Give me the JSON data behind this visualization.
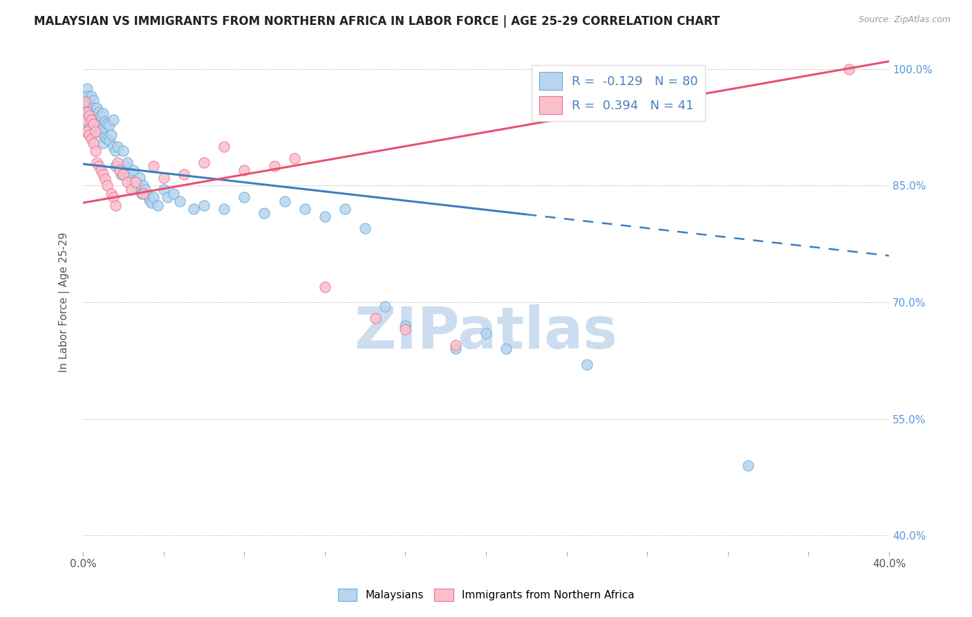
{
  "title": "MALAYSIAN VS IMMIGRANTS FROM NORTHERN AFRICA IN LABOR FORCE | AGE 25-29 CORRELATION CHART",
  "source_text": "Source: ZipAtlas.com",
  "ylabel": "In Labor Force | Age 25-29",
  "r_malaysian": -0.129,
  "n_malaysian": 80,
  "r_northern_africa": 0.394,
  "n_northern_africa": 41,
  "color_malaysian_fill": "#b8d4ee",
  "color_malaysian_edge": "#6aaed6",
  "color_northern_africa_fill": "#f9c0cc",
  "color_northern_africa_edge": "#f07090",
  "color_trendline_malaysian": "#3a7fc1",
  "color_trendline_northern_africa": "#e85070",
  "watermark_color": "#ccddf0",
  "xlim": [
    0.0,
    0.4
  ],
  "ylim": [
    0.38,
    1.02
  ],
  "trendline_solid_end_mal": 0.22,
  "mal_points_x": [
    0.001,
    0.001,
    0.001,
    0.002,
    0.002,
    0.002,
    0.003,
    0.003,
    0.003,
    0.004,
    0.004,
    0.004,
    0.005,
    0.005,
    0.005,
    0.006,
    0.006,
    0.006,
    0.007,
    0.007,
    0.008,
    0.008,
    0.009,
    0.009,
    0.01,
    0.01,
    0.01,
    0.011,
    0.011,
    0.012,
    0.012,
    0.013,
    0.013,
    0.014,
    0.015,
    0.015,
    0.016,
    0.016,
    0.017,
    0.018,
    0.019,
    0.02,
    0.02,
    0.021,
    0.022,
    0.023,
    0.024,
    0.025,
    0.026,
    0.027,
    0.028,
    0.029,
    0.03,
    0.031,
    0.032,
    0.033,
    0.034,
    0.035,
    0.037,
    0.04,
    0.042,
    0.045,
    0.048,
    0.055,
    0.06,
    0.07,
    0.08,
    0.09,
    0.1,
    0.11,
    0.12,
    0.13,
    0.14,
    0.15,
    0.16,
    0.185,
    0.2,
    0.21,
    0.25,
    0.33
  ],
  "mal_points_y": [
    0.96,
    0.94,
    0.92,
    0.975,
    0.965,
    0.95,
    0.96,
    0.945,
    0.93,
    0.965,
    0.95,
    0.935,
    0.96,
    0.95,
    0.93,
    0.948,
    0.935,
    0.925,
    0.95,
    0.928,
    0.945,
    0.92,
    0.94,
    0.918,
    0.943,
    0.925,
    0.905,
    0.932,
    0.912,
    0.93,
    0.91,
    0.928,
    0.908,
    0.915,
    0.935,
    0.9,
    0.895,
    0.875,
    0.9,
    0.87,
    0.865,
    0.895,
    0.865,
    0.875,
    0.88,
    0.865,
    0.855,
    0.87,
    0.855,
    0.845,
    0.86,
    0.84,
    0.85,
    0.845,
    0.838,
    0.832,
    0.828,
    0.835,
    0.825,
    0.845,
    0.835,
    0.84,
    0.83,
    0.82,
    0.825,
    0.82,
    0.835,
    0.815,
    0.83,
    0.82,
    0.81,
    0.82,
    0.795,
    0.695,
    0.67,
    0.64,
    0.66,
    0.64,
    0.62,
    0.49
  ],
  "afr_points_x": [
    0.001,
    0.001,
    0.002,
    0.002,
    0.003,
    0.003,
    0.004,
    0.004,
    0.005,
    0.005,
    0.006,
    0.006,
    0.007,
    0.008,
    0.009,
    0.01,
    0.011,
    0.012,
    0.014,
    0.015,
    0.016,
    0.017,
    0.018,
    0.02,
    0.022,
    0.024,
    0.026,
    0.03,
    0.035,
    0.04,
    0.05,
    0.06,
    0.07,
    0.08,
    0.095,
    0.105,
    0.12,
    0.145,
    0.16,
    0.185,
    0.38
  ],
  "afr_points_y": [
    0.958,
    0.935,
    0.945,
    0.92,
    0.94,
    0.915,
    0.935,
    0.91,
    0.93,
    0.905,
    0.92,
    0.895,
    0.88,
    0.875,
    0.87,
    0.865,
    0.858,
    0.85,
    0.84,
    0.835,
    0.825,
    0.88,
    0.87,
    0.865,
    0.855,
    0.845,
    0.855,
    0.84,
    0.875,
    0.86,
    0.865,
    0.88,
    0.9,
    0.87,
    0.875,
    0.885,
    0.72,
    0.68,
    0.665,
    0.645,
    1.0
  ],
  "trendline_mal_x0": 0.0,
  "trendline_mal_y0": 0.878,
  "trendline_mal_x1": 0.4,
  "trendline_mal_y1": 0.76,
  "trendline_afr_x0": 0.0,
  "trendline_afr_y0": 0.828,
  "trendline_afr_x1": 0.4,
  "trendline_afr_y1": 1.01,
  "trendline_solid_end": 0.22,
  "trendline_dashed_start": 0.22
}
